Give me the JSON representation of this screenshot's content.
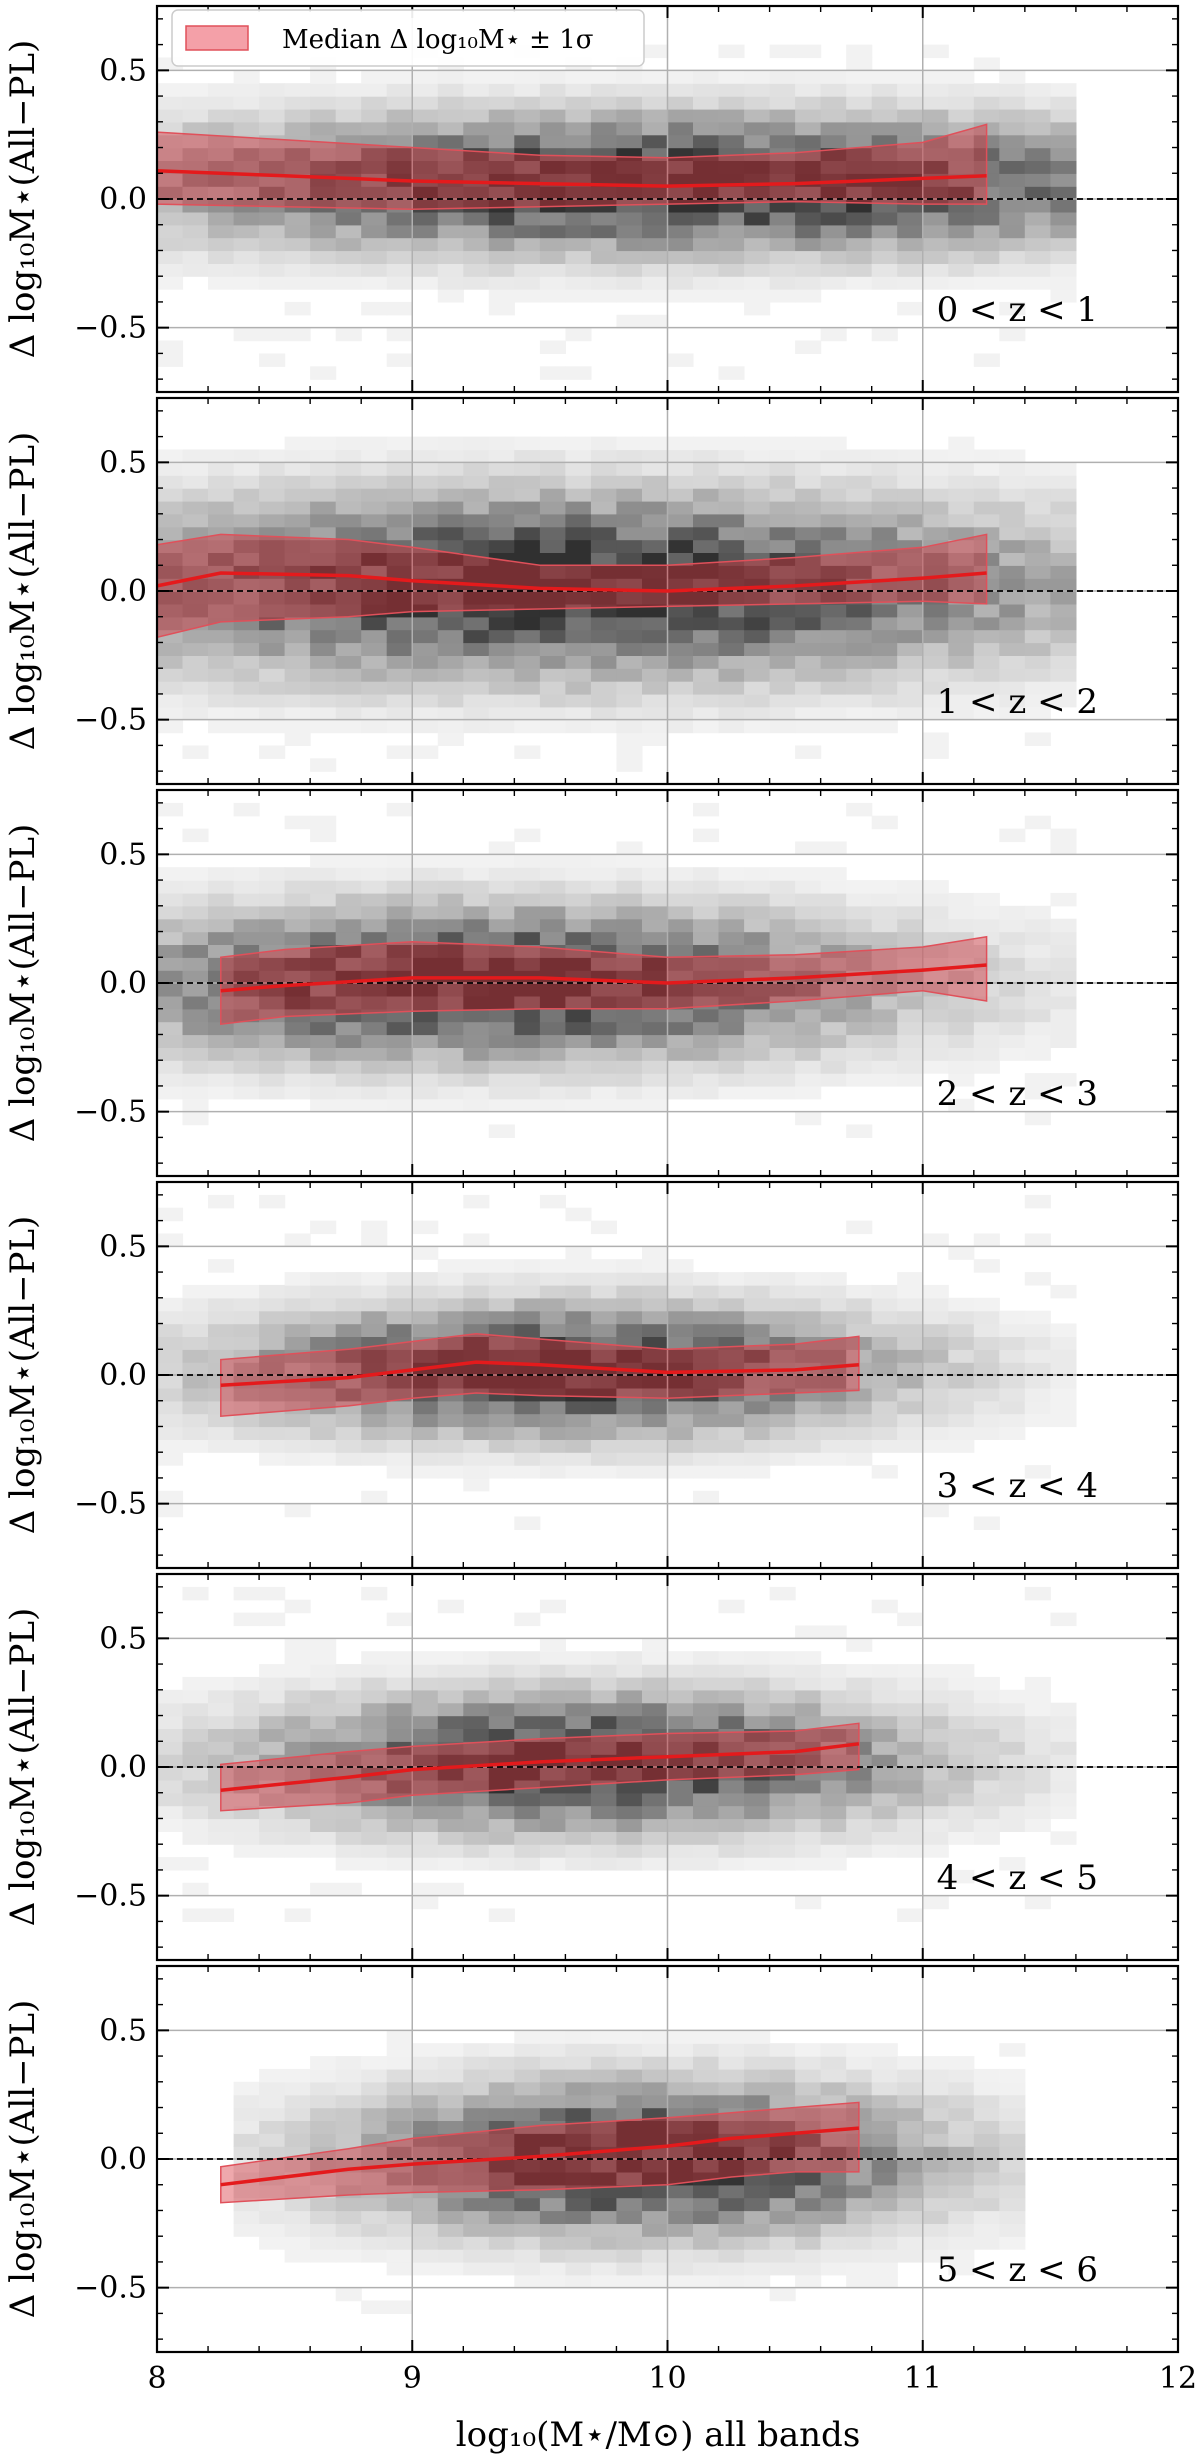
{
  "legend": {
    "label": "Median Δ log₁₀M⋆ ± 1σ",
    "swatch_color": "#f4a0a8",
    "swatch_edge": "#e0505a"
  },
  "xlabel": "log₁₀(M⋆/M⊙) all bands",
  "ylabel": "Δ log₁₀M⋆(All−PL)",
  "colors": {
    "median_line": "#e41a1c",
    "band_fill": "#d7303a",
    "band_edge": "#e0505a",
    "zero_line": "#000000",
    "grid": "#b0b0b0"
  },
  "chart_data": [
    {
      "type": "heatmap",
      "zlabel": "0 < z < 1",
      "xlim": [
        8,
        12
      ],
      "ylim": [
        -0.75,
        0.75
      ],
      "xticks": [
        "8",
        "9",
        "10",
        "11",
        "12"
      ],
      "yticks": [
        "0.5",
        "0.0",
        "−0.5"
      ],
      "ytick_values": [
        0.5,
        0.0,
        -0.5
      ],
      "grid": true,
      "density": {
        "x_center": 10.0,
        "x_width": 1.5,
        "y_center": 0.06,
        "y_width": 0.18,
        "x_min": 8.0,
        "x_max": 11.6,
        "y_min": -0.7,
        "y_max": 0.6,
        "sparse": 0.15
      },
      "median": {
        "x": [
          8.0,
          8.5,
          9.0,
          9.5,
          10.0,
          10.5,
          11.0,
          11.25
        ],
        "y": [
          0.11,
          0.09,
          0.07,
          0.06,
          0.05,
          0.06,
          0.08,
          0.09
        ]
      },
      "band": {
        "x": [
          8.0,
          8.5,
          9.0,
          9.5,
          10.0,
          10.5,
          11.0,
          11.25
        ],
        "upper": [
          0.26,
          0.23,
          0.2,
          0.17,
          0.16,
          0.18,
          0.22,
          0.29
        ],
        "lower": [
          -0.02,
          -0.03,
          -0.04,
          -0.03,
          -0.02,
          -0.01,
          -0.02,
          -0.02
        ]
      }
    },
    {
      "type": "heatmap",
      "zlabel": "1 < z < 2",
      "xlim": [
        8,
        12
      ],
      "ylim": [
        -0.75,
        0.75
      ],
      "xticks": [
        "8",
        "9",
        "10",
        "11",
        "12"
      ],
      "yticks": [
        "0.5",
        "0.0",
        "−0.5"
      ],
      "ytick_values": [
        0.5,
        0.0,
        -0.5
      ],
      "grid": true,
      "density": {
        "x_center": 9.6,
        "x_width": 1.4,
        "y_center": 0.02,
        "y_width": 0.24,
        "x_min": 8.0,
        "x_max": 11.6,
        "y_min": -0.7,
        "y_max": 0.6,
        "sparse": 0.15
      },
      "median": {
        "x": [
          8.0,
          8.25,
          8.75,
          9.0,
          9.5,
          10.0,
          10.5,
          11.0,
          11.25
        ],
        "y": [
          0.02,
          0.07,
          0.06,
          0.04,
          0.01,
          0.0,
          0.02,
          0.05,
          0.07
        ]
      },
      "band": {
        "x": [
          8.0,
          8.25,
          8.75,
          9.0,
          9.5,
          10.0,
          10.5,
          11.0,
          11.25
        ],
        "upper": [
          0.18,
          0.22,
          0.2,
          0.17,
          0.1,
          0.1,
          0.13,
          0.17,
          0.22
        ],
        "lower": [
          -0.18,
          -0.12,
          -0.1,
          -0.08,
          -0.07,
          -0.06,
          -0.05,
          -0.04,
          -0.05
        ]
      }
    },
    {
      "type": "heatmap",
      "zlabel": "2 < z < 3",
      "xlim": [
        8,
        12
      ],
      "ylim": [
        -0.75,
        0.75
      ],
      "xticks": [
        "8",
        "9",
        "10",
        "11",
        "12"
      ],
      "yticks": [
        "0.5",
        "0.0",
        "−0.5"
      ],
      "ytick_values": [
        0.5,
        0.0,
        -0.5
      ],
      "grid": true,
      "density": {
        "x_center": 9.3,
        "x_width": 1.1,
        "y_center": 0.0,
        "y_width": 0.2,
        "x_min": 8.0,
        "x_max": 11.6,
        "y_min": -0.6,
        "y_max": 0.7,
        "sparse": 0.15
      },
      "median": {
        "x": [
          8.25,
          8.5,
          9.0,
          9.5,
          10.0,
          10.5,
          11.0,
          11.25
        ],
        "y": [
          -0.03,
          -0.01,
          0.02,
          0.02,
          0.0,
          0.02,
          0.05,
          0.07
        ]
      },
      "band": {
        "x": [
          8.25,
          8.5,
          9.0,
          9.5,
          10.0,
          10.5,
          11.0,
          11.25
        ],
        "upper": [
          0.1,
          0.13,
          0.16,
          0.14,
          0.1,
          0.11,
          0.14,
          0.18
        ],
        "lower": [
          -0.16,
          -0.13,
          -0.11,
          -0.1,
          -0.1,
          -0.07,
          -0.03,
          -0.07
        ]
      }
    },
    {
      "type": "heatmap",
      "zlabel": "3 < z < 4",
      "xlim": [
        8,
        12
      ],
      "ylim": [
        -0.75,
        0.75
      ],
      "xticks": [
        "8",
        "9",
        "10",
        "11",
        "12"
      ],
      "yticks": [
        "0.5",
        "0.0",
        "−0.5"
      ],
      "ytick_values": [
        0.5,
        0.0,
        -0.5
      ],
      "grid": true,
      "density": {
        "x_center": 9.6,
        "x_width": 0.9,
        "y_center": 0.02,
        "y_width": 0.17,
        "x_min": 8.0,
        "x_max": 11.6,
        "y_min": -0.6,
        "y_max": 0.7,
        "sparse": 0.12
      },
      "median": {
        "x": [
          8.25,
          8.75,
          9.0,
          9.25,
          9.5,
          10.0,
          10.5,
          10.75
        ],
        "y": [
          -0.04,
          -0.01,
          0.02,
          0.05,
          0.04,
          0.01,
          0.02,
          0.04
        ]
      },
      "band": {
        "x": [
          8.25,
          8.75,
          9.0,
          9.25,
          9.5,
          10.0,
          10.5,
          10.75
        ],
        "upper": [
          0.06,
          0.1,
          0.13,
          0.16,
          0.14,
          0.1,
          0.12,
          0.15
        ],
        "lower": [
          -0.16,
          -0.12,
          -0.09,
          -0.07,
          -0.08,
          -0.09,
          -0.07,
          -0.06
        ]
      }
    },
    {
      "type": "heatmap",
      "zlabel": "4 < z < 5",
      "xlim": [
        8,
        12
      ],
      "ylim": [
        -0.75,
        0.75
      ],
      "xticks": [
        "8",
        "9",
        "10",
        "11",
        "12"
      ],
      "yticks": [
        "0.5",
        "0.0",
        "−0.5"
      ],
      "ytick_values": [
        0.5,
        0.0,
        -0.5
      ],
      "grid": true,
      "density": {
        "x_center": 9.7,
        "x_width": 0.9,
        "y_center": 0.02,
        "y_width": 0.18,
        "x_min": 8.0,
        "x_max": 11.6,
        "y_min": -0.6,
        "y_max": 0.7,
        "sparse": 0.12
      },
      "median": {
        "x": [
          8.25,
          8.75,
          9.0,
          9.5,
          10.0,
          10.5,
          10.75
        ],
        "y": [
          -0.09,
          -0.04,
          -0.01,
          0.02,
          0.04,
          0.06,
          0.09
        ]
      },
      "band": {
        "x": [
          8.25,
          8.75,
          9.0,
          9.5,
          10.0,
          10.5,
          10.75
        ],
        "upper": [
          0.01,
          0.06,
          0.08,
          0.11,
          0.13,
          0.14,
          0.17
        ],
        "lower": [
          -0.17,
          -0.14,
          -0.11,
          -0.08,
          -0.05,
          -0.03,
          -0.01
        ]
      }
    },
    {
      "type": "heatmap",
      "zlabel": "5 < z < 6",
      "xlim": [
        8,
        12
      ],
      "ylim": [
        -0.75,
        0.75
      ],
      "xticks": [
        "8",
        "9",
        "10",
        "11",
        "12"
      ],
      "yticks": [
        "0.5",
        "0.0",
        "−0.5"
      ],
      "ytick_values": [
        0.5,
        0.0,
        -0.5
      ],
      "grid": true,
      "density": {
        "x_center": 9.9,
        "x_width": 0.8,
        "y_center": 0.0,
        "y_width": 0.2,
        "x_min": 8.3,
        "x_max": 11.4,
        "y_min": -0.6,
        "y_max": 0.5,
        "sparse": 0.08
      },
      "median": {
        "x": [
          8.25,
          8.75,
          9.0,
          9.5,
          10.0,
          10.25,
          10.5,
          10.75
        ],
        "y": [
          -0.1,
          -0.04,
          -0.02,
          0.01,
          0.05,
          0.08,
          0.1,
          0.12
        ]
      },
      "band": {
        "x": [
          8.25,
          8.75,
          9.0,
          9.5,
          10.0,
          10.25,
          10.5,
          10.75
        ],
        "upper": [
          -0.03,
          0.04,
          0.08,
          0.13,
          0.16,
          0.18,
          0.2,
          0.22
        ],
        "lower": [
          -0.17,
          -0.14,
          -0.13,
          -0.12,
          -0.1,
          -0.07,
          -0.05,
          -0.05
        ]
      }
    }
  ]
}
